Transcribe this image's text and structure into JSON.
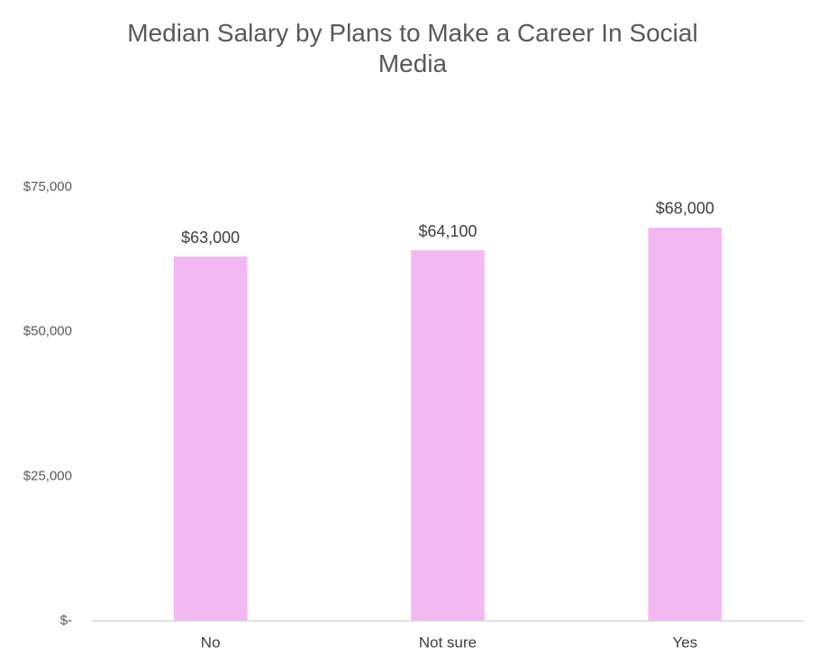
{
  "chart_data": {
    "type": "bar",
    "title": "Median Salary by Plans to Make a Career In Social Media",
    "categories": [
      "No",
      "Not sure",
      "Yes"
    ],
    "values": [
      63000,
      64100,
      68000
    ],
    "value_labels": [
      "$63,000",
      "$64,100",
      "$68,000"
    ],
    "color": "#f3b8f2",
    "ylim": [
      0,
      75000
    ],
    "yticks": [
      {
        "value": 0,
        "label": "$-"
      },
      {
        "value": 25000,
        "label": "$25,000"
      },
      {
        "value": 50000,
        "label": "$50,000"
      },
      {
        "value": 75000,
        "label": "$75,000"
      }
    ],
    "grid": false
  }
}
